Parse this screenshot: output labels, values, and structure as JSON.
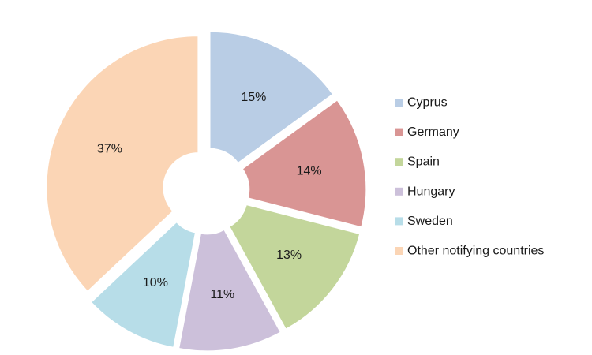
{
  "chart_data": {
    "type": "pie",
    "title": "",
    "categories": [
      "Cyprus",
      "Germany",
      "Spain",
      "Hungary",
      "Sweden",
      "Other notifying countries"
    ],
    "values": [
      15,
      14,
      13,
      11,
      10,
      37
    ],
    "labels": [
      "15%",
      "14%",
      "13%",
      "11%",
      "10%",
      "37%"
    ],
    "colors": [
      "#b9cde5",
      "#d99594",
      "#c3d69b",
      "#ccc0da",
      "#b7dde8",
      "#fbd5b5"
    ],
    "donut_hole": true,
    "exploded": true,
    "legend_position": "right"
  }
}
